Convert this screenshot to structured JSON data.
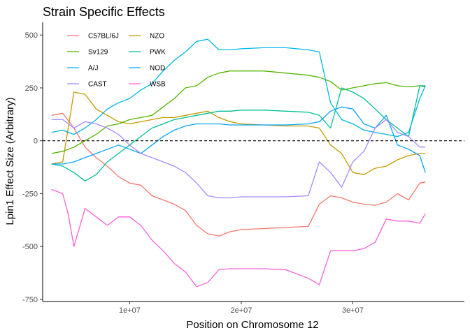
{
  "chart_data": {
    "type": "line",
    "title": "Strain Specific Effects",
    "xlabel": "Position on Chromosome 12",
    "ylabel": "Lpin1 Effect Size (Arbitrary)",
    "xlim": [
      2200000,
      40000000
    ],
    "ylim": [
      -760,
      560
    ],
    "x_ticks": [
      {
        "value": 10000000,
        "label": "1e+07"
      },
      {
        "value": 20000000,
        "label": "2e+07"
      },
      {
        "value": 30000000,
        "label": "3e+07"
      }
    ],
    "y_ticks": [
      {
        "value": -750,
        "label": "-750"
      },
      {
        "value": -500,
        "label": "-500"
      },
      {
        "value": -250,
        "label": "-250"
      },
      {
        "value": 0,
        "label": "0"
      },
      {
        "value": 250,
        "label": "250"
      },
      {
        "value": 500,
        "label": "500"
      }
    ],
    "hline": {
      "y": 0,
      "style": "dashed"
    },
    "grid": false,
    "legend": "top-left, inside, two columns",
    "series": [
      {
        "name": "C57BL/6J",
        "color": "#F8766D",
        "x": [
          3000000.0,
          4000000.0,
          5000000.0,
          6000000.0,
          7000000.0,
          8000000.0,
          9000000.0,
          10000000.0,
          11000000.0,
          12000000.0,
          13000000.0,
          14000000.0,
          15000000.0,
          16000000.0,
          17000000.0,
          18000000.0,
          19000000.0,
          20000000.0,
          22000000.0,
          24000000.0,
          26000000.0,
          27000000.0,
          28000000.0,
          29000000.0,
          30000000.0,
          31000000.0,
          32000000.0,
          33000000.0,
          34000000.0,
          35000000.0,
          36000000.0,
          36500000.0
        ],
        "y": [
          120,
          130,
          60,
          -30,
          -80,
          -120,
          -170,
          -200,
          -210,
          -260,
          -280,
          -300,
          -330,
          -400,
          -440,
          -450,
          -430,
          -420,
          -415,
          -410,
          -405,
          -300,
          -260,
          -270,
          -290,
          -300,
          -305,
          -290,
          -250,
          -280,
          -200,
          -195
        ]
      },
      {
        "name": "NZO",
        "color": "#C49A00",
        "x": [
          3000000.0,
          4000000.0,
          5000000.0,
          6000000.0,
          7000000.0,
          8000000.0,
          9000000.0,
          10000000.0,
          11000000.0,
          12000000.0,
          13000000.0,
          14000000.0,
          15000000.0,
          16000000.0,
          17000000.0,
          18000000.0,
          19000000.0,
          20000000.0,
          22000000.0,
          24000000.0,
          26000000.0,
          27000000.0,
          28000000.0,
          29000000.0,
          30000000.0,
          31000000.0,
          32000000.0,
          33000000.0,
          34000000.0,
          35000000.0,
          36000000.0,
          36500000.0
        ],
        "y": [
          -110,
          -100,
          230,
          220,
          150,
          120,
          90,
          80,
          90,
          100,
          110,
          110,
          120,
          130,
          140,
          110,
          90,
          80,
          75,
          70,
          70,
          60,
          -20,
          -60,
          -150,
          -160,
          -130,
          -120,
          -90,
          -70,
          -60,
          -60
        ]
      },
      {
        "name": "Sv129",
        "color": "#53B400",
        "x": [
          3000000.0,
          4000000.0,
          5000000.0,
          6000000.0,
          7000000.0,
          8000000.0,
          9000000.0,
          10000000.0,
          11000000.0,
          12000000.0,
          13000000.0,
          14000000.0,
          15000000.0,
          16000000.0,
          17000000.0,
          18000000.0,
          19000000.0,
          20000000.0,
          22000000.0,
          24000000.0,
          26000000.0,
          27000000.0,
          28000000.0,
          29000000.0,
          30000000.0,
          31000000.0,
          32000000.0,
          33000000.0,
          34000000.0,
          35000000.0,
          36000000.0,
          36500000.0
        ],
        "y": [
          -60,
          -50,
          -30,
          0,
          30,
          70,
          80,
          100,
          110,
          120,
          160,
          200,
          250,
          260,
          300,
          320,
          330,
          330,
          330,
          320,
          310,
          300,
          280,
          240,
          250,
          260,
          270,
          275,
          260,
          255,
          260,
          255
        ]
      },
      {
        "name": "PWK",
        "color": "#00C094",
        "x": [
          3000000.0,
          4000000.0,
          5000000.0,
          6000000.0,
          7000000.0,
          8000000.0,
          9000000.0,
          10000000.0,
          11000000.0,
          12000000.0,
          13000000.0,
          14000000.0,
          15000000.0,
          16000000.0,
          17000000.0,
          18000000.0,
          19000000.0,
          20000000.0,
          22000000.0,
          24000000.0,
          26000000.0,
          27000000.0,
          28000000.0,
          29000000.0,
          30000000.0,
          31000000.0,
          32000000.0,
          33000000.0,
          34000000.0,
          35000000.0,
          36000000.0,
          36500000.0
        ],
        "y": [
          -110,
          -120,
          -150,
          -190,
          -160,
          -100,
          -60,
          -20,
          20,
          60,
          80,
          100,
          110,
          120,
          130,
          140,
          140,
          145,
          145,
          140,
          135,
          120,
          60,
          250,
          230,
          200,
          150,
          100,
          60,
          20,
          260,
          260
        ]
      },
      {
        "name": "A/J",
        "color": "#00B6EB",
        "x": [
          3000000.0,
          4000000.0,
          5000000.0,
          6000000.0,
          7000000.0,
          8000000.0,
          9000000.0,
          10000000.0,
          11000000.0,
          12000000.0,
          13000000.0,
          14000000.0,
          15000000.0,
          16000000.0,
          17000000.0,
          18000000.0,
          19000000.0,
          20000000.0,
          22000000.0,
          24000000.0,
          26000000.0,
          27000000.0,
          28000000.0,
          29000000.0,
          30000000.0,
          31000000.0,
          32000000.0,
          33000000.0,
          34000000.0,
          35000000.0,
          36000000.0,
          36500000.0
        ],
        "y": [
          40,
          50,
          30,
          60,
          100,
          150,
          180,
          200,
          240,
          270,
          330,
          380,
          420,
          470,
          480,
          430,
          430,
          435,
          440,
          440,
          430,
          420,
          180,
          100,
          80,
          50,
          40,
          30,
          20,
          40,
          200,
          260
        ]
      },
      {
        "name": "NOD",
        "color": "#06A4FF",
        "x": [
          3000000.0,
          4000000.0,
          5000000.0,
          6000000.0,
          7000000.0,
          8000000.0,
          9000000.0,
          10000000.0,
          11000000.0,
          12000000.0,
          13000000.0,
          14000000.0,
          15000000.0,
          16000000.0,
          17000000.0,
          18000000.0,
          19000000.0,
          20000000.0,
          22000000.0,
          24000000.0,
          26000000.0,
          27000000.0,
          28000000.0,
          29000000.0,
          30000000.0,
          31000000.0,
          32000000.0,
          33000000.0,
          34000000.0,
          35000000.0,
          36000000.0,
          36500000.0
        ],
        "y": [
          -110,
          -110,
          -100,
          -80,
          -60,
          -40,
          -20,
          -40,
          -60,
          -20,
          20,
          50,
          70,
          80,
          80,
          80,
          75,
          75,
          75,
          75,
          80,
          90,
          140,
          160,
          150,
          80,
          60,
          120,
          -20,
          -40,
          -70,
          -150
        ]
      },
      {
        "name": "CAST",
        "color": "#A58AFF",
        "x": [
          3000000.0,
          4000000.0,
          5000000.0,
          6000000.0,
          7000000.0,
          8000000.0,
          9000000.0,
          10000000.0,
          11000000.0,
          12000000.0,
          13000000.0,
          14000000.0,
          15000000.0,
          16000000.0,
          17000000.0,
          18000000.0,
          19000000.0,
          20000000.0,
          22000000.0,
          24000000.0,
          26000000.0,
          27000000.0,
          28000000.0,
          29000000.0,
          30000000.0,
          31000000.0,
          32000000.0,
          33000000.0,
          34000000.0,
          35000000.0,
          36000000.0,
          36500000.0
        ],
        "y": [
          100,
          100,
          60,
          90,
          80,
          60,
          30,
          -20,
          -60,
          -80,
          -100,
          -120,
          -150,
          -200,
          -260,
          -270,
          -270,
          -265,
          -265,
          -265,
          -260,
          -100,
          -150,
          -220,
          -100,
          -50,
          60,
          100,
          40,
          20,
          -30,
          -30
        ]
      },
      {
        "name": "WSB",
        "color": "#FB61D7",
        "x": [
          3000000.0,
          4000000.0,
          4500000.0,
          5000000.0,
          6000000.0,
          7000000.0,
          8000000.0,
          9000000.0,
          10000000.0,
          11000000.0,
          12000000.0,
          13000000.0,
          14000000.0,
          15000000.0,
          16000000.0,
          17000000.0,
          18000000.0,
          19000000.0,
          20000000.0,
          22000000.0,
          24000000.0,
          26000000.0,
          27000000.0,
          28000000.0,
          29000000.0,
          30000000.0,
          31000000.0,
          32000000.0,
          33000000.0,
          34000000.0,
          35000000.0,
          36000000.0,
          36500000.0
        ],
        "y": [
          -230,
          -250,
          -350,
          -500,
          -320,
          -360,
          -400,
          -360,
          -360,
          -400,
          -470,
          -520,
          -580,
          -620,
          -690,
          -670,
          -610,
          -605,
          -605,
          -605,
          -610,
          -650,
          -680,
          -520,
          -520,
          -520,
          -510,
          -480,
          -370,
          -380,
          -380,
          -390,
          -345
        ]
      }
    ]
  }
}
